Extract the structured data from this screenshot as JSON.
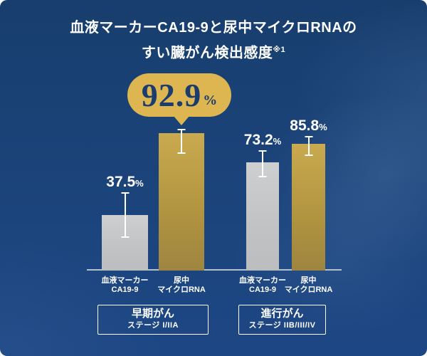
{
  "header": {
    "title_line1": "血液マーカーCA19-9と尿中マイクロRNAの",
    "title_line2": "すい臓がん検出感度",
    "footnote_marker": "※1"
  },
  "chart_data": {
    "type": "bar",
    "title": "血液マーカーCA19-9と尿中マイクロRNAのすい臓がん検出感度※1",
    "unit": "%",
    "ylim": [
      0,
      100
    ],
    "grid": false,
    "legend": "none",
    "colors": {
      "ca19_9_bar": "#c3c4c6",
      "microrna_bar": "#b69842",
      "callout_bubble": "#ddb652",
      "callout_text": "#1a3c6e",
      "background": "#1b4379",
      "text": "#ffffff",
      "error_bar": "#ffffff"
    },
    "groups": [
      {
        "label": "早期がん",
        "sublabel": "ステージ I/IIA",
        "bars": [
          {
            "category": "血液マーカー CA19-9",
            "category_lines": [
              "血液マーカー",
              "CA19-9"
            ],
            "value": 37.5,
            "display": "37.5",
            "error_above": 15.4,
            "error_below": 15.4,
            "color": "gray",
            "callout": false
          },
          {
            "category": "尿中 マイクロRNA",
            "category_lines": [
              "尿中",
              "マイクロRNA"
            ],
            "value": 92.9,
            "display": "92.9",
            "error_above": 2.9,
            "error_below": 14.0,
            "color": "gold",
            "callout": true
          }
        ]
      },
      {
        "label": "進行がん",
        "sublabel": "ステージ IIB/III/IV",
        "bars": [
          {
            "category": "血液マーカー CA19-9",
            "category_lines": [
              "血液マーカー",
              "CA19-9"
            ],
            "value": 73.2,
            "display": "73.2",
            "error_above": 8.2,
            "error_below": 10.1,
            "color": "gray",
            "callout": false
          },
          {
            "category": "尿中 マイクロRNA",
            "category_lines": [
              "尿中",
              "マイクロRNA"
            ],
            "value": 85.8,
            "display": "85.8",
            "error_above": 5.3,
            "error_below": 8.2,
            "color": "gold",
            "callout": false
          }
        ]
      }
    ]
  }
}
